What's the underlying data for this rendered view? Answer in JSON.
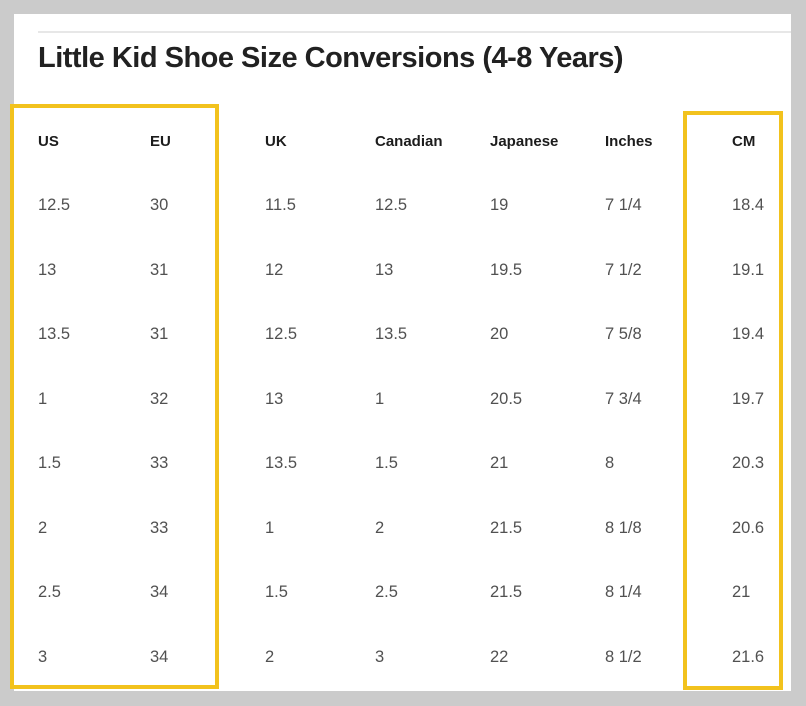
{
  "page": {
    "background_color": "#cbcbcb",
    "card_color": "#ffffff",
    "divider_color": "#e7e7e7"
  },
  "title": "Little Kid Shoe Size Conversions (4-8 Years)",
  "highlight": {
    "color": "#f2c21d",
    "boxes": [
      "us-eu-columns",
      "cm-column"
    ]
  },
  "table": {
    "headers": [
      "US",
      "EU",
      "UK",
      "Canadian",
      "Japanese",
      "Inches",
      "CM"
    ],
    "rows": [
      [
        "12.5",
        "30",
        "11.5",
        "12.5",
        "19",
        "7 1/4",
        "18.4"
      ],
      [
        "13",
        "31",
        "12",
        "13",
        "19.5",
        "7 1/2",
        "19.1"
      ],
      [
        "13.5",
        "31",
        "12.5",
        "13.5",
        "20",
        "7 5/8",
        "19.4"
      ],
      [
        "1",
        "32",
        "13",
        "1",
        "20.5",
        "7 3/4",
        "19.7"
      ],
      [
        "1.5",
        "33",
        "13.5",
        "1.5",
        "21",
        "8",
        "20.3"
      ],
      [
        "2",
        "33",
        "1",
        "2",
        "21.5",
        "8 1/8",
        "20.6"
      ],
      [
        "2.5",
        "34",
        "1.5",
        "2.5",
        "21.5",
        "8 1/4",
        "21"
      ],
      [
        "3",
        "34",
        "2",
        "3",
        "22",
        "8 1/2",
        "21.6"
      ]
    ]
  }
}
